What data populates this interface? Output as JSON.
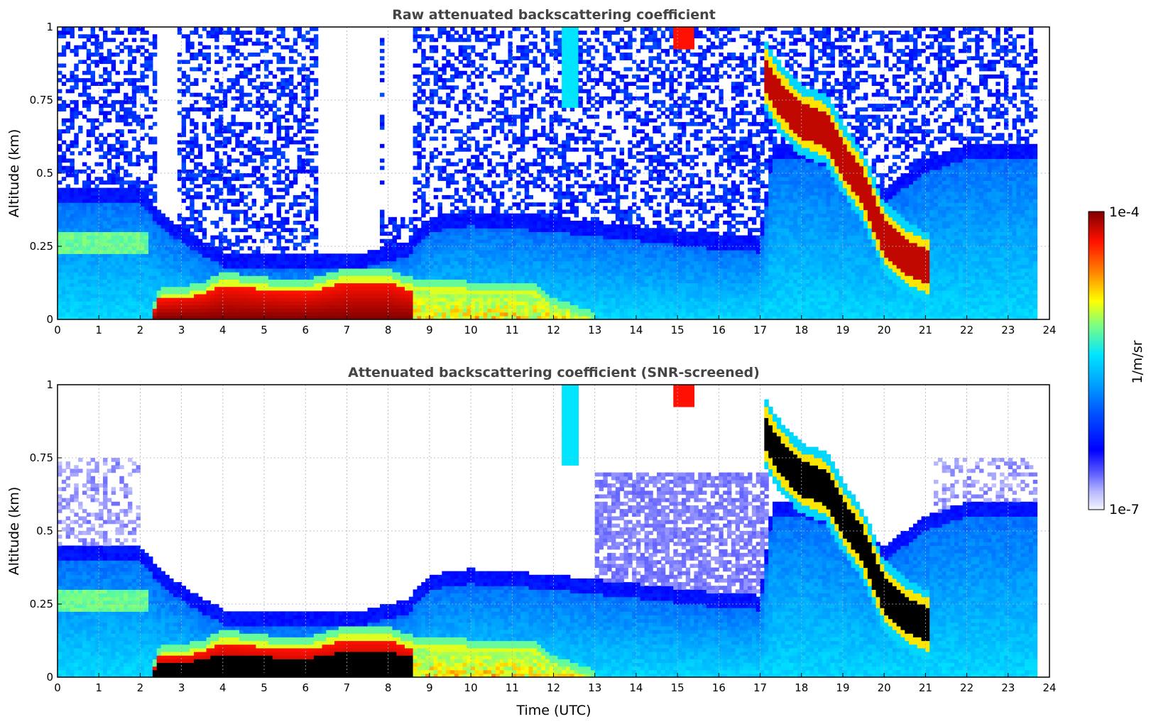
{
  "chart_data": [
    {
      "type": "heatmap",
      "title": "Raw attenuated backscattering coefficient",
      "xlabel": "",
      "ylabel": "Altitude (km)",
      "xlim": [
        0,
        24
      ],
      "ylim": [
        0,
        1
      ],
      "grid": true,
      "x_ticks": [
        "0",
        "1",
        "2",
        "3",
        "4",
        "5",
        "6",
        "7",
        "8",
        "9",
        "10",
        "11",
        "12",
        "13",
        "14",
        "15",
        "16",
        "17",
        "18",
        "19",
        "20",
        "21",
        "22",
        "23",
        "24"
      ],
      "y_ticks": [
        "0",
        "0.25",
        "0.5",
        "0.75",
        "1"
      ],
      "features": [
        {
          "time": 0.0,
          "boundary_layer_top_km": 0.4,
          "aerosol_layer_km": 0.25
        },
        {
          "time": 2.0,
          "boundary_layer_top_km": 0.4
        },
        {
          "time": 2.4,
          "dense_layer_top_km": 0.08
        },
        {
          "time": 4.0,
          "dense_layer_top_km": 0.13
        },
        {
          "time": 6.0,
          "dense_layer_top_km": 0.12
        },
        {
          "time": 8.0,
          "dense_layer_top_km": 0.15
        },
        {
          "time": 9.0,
          "boundary_layer_top_km": 0.3
        },
        {
          "time": 15.2,
          "cloud_base_km": 0.95
        },
        {
          "time": 17.2,
          "cloud_layer_km": 0.8
        },
        {
          "time": 18.0,
          "cloud_layer_km": 0.7
        },
        {
          "time": 19.0,
          "cloud_layer_km": 0.55
        },
        {
          "time": 20.0,
          "cloud_layer_km": 0.2
        },
        {
          "time": 21.0,
          "cloud_layer_km": 0.18
        },
        {
          "time": 22.0,
          "boundary_layer_top_km": 0.55
        }
      ]
    },
    {
      "type": "heatmap",
      "title": "Attenuated backscattering coefficient (SNR-screened)",
      "xlabel": "Time (UTC)",
      "ylabel": "Altitude (km)",
      "xlim": [
        0,
        24
      ],
      "ylim": [
        0,
        1
      ],
      "grid": true,
      "x_ticks": [
        "0",
        "1",
        "2",
        "3",
        "4",
        "5",
        "6",
        "7",
        "8",
        "9",
        "10",
        "11",
        "12",
        "13",
        "14",
        "15",
        "16",
        "17",
        "18",
        "19",
        "20",
        "21",
        "22",
        "23",
        "24"
      ],
      "y_ticks": [
        "0",
        "0.25",
        "0.5",
        "0.75",
        "1"
      ]
    }
  ],
  "colorbar": {
    "max_label": "1e-4",
    "min_label": "1e-7",
    "label": "1/m/sr",
    "colors": [
      "#f2f2ff",
      "#7f7fff",
      "#0000ff",
      "#0080ff",
      "#00e5ff",
      "#7fff7f",
      "#ffff00",
      "#ff8000",
      "#ff0000",
      "#800000"
    ]
  }
}
